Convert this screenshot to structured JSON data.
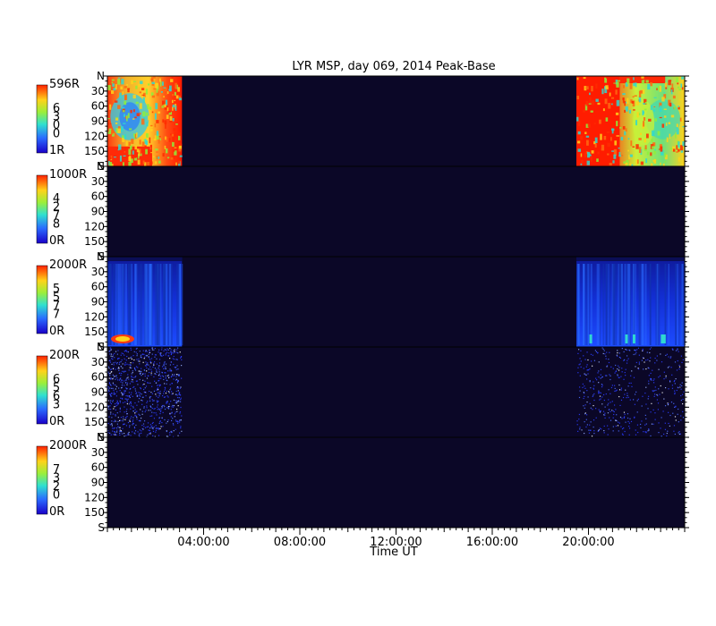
{
  "chart_data": {
    "type": "heatmap",
    "title": "LYR MSP, day 069, 2014 Peak-Base",
    "xlabel": "Time UT",
    "x_ticks": [
      "04:00:00",
      "08:00:00",
      "12:00:00",
      "16:00:00",
      "20:00:00"
    ],
    "xlim_hours": [
      0,
      24
    ],
    "x_tick_hours": [
      4,
      8,
      12,
      16,
      20
    ],
    "y_ticks": [
      "N",
      "30",
      "60",
      "90",
      "120",
      "150",
      "S"
    ],
    "ylim_deg": [
      0,
      180
    ],
    "y_tick_deg": [
      0,
      30,
      60,
      90,
      120,
      150,
      180
    ],
    "data_windows_hours": [
      [
        0,
        3.1
      ],
      [
        19.5,
        24
      ]
    ],
    "background_color": "#0b0727",
    "panels": [
      {
        "colorbar_max": "596R",
        "colorbar_min": "1R",
        "colorbar_digits": [
          "6",
          "3",
          "0",
          "0"
        ],
        "colormap": "rainbow",
        "fill": "saturated"
      },
      {
        "colorbar_max": "1000R",
        "colorbar_min": "0R",
        "colorbar_digits": [
          "4",
          "2",
          "7",
          "8"
        ],
        "colormap": "rainbow",
        "fill": "empty"
      },
      {
        "colorbar_max": "2000R",
        "colorbar_min": "0R",
        "colorbar_digits": [
          "5",
          "5",
          "7",
          "7"
        ],
        "colormap": "rainbow",
        "fill": "faint"
      },
      {
        "colorbar_max": "200R",
        "colorbar_min": "0R",
        "colorbar_digits": [
          "6",
          "5",
          "6",
          "3"
        ],
        "colormap": "rainbow",
        "fill": "speckle"
      },
      {
        "colorbar_max": "2000R",
        "colorbar_min": "0R",
        "colorbar_digits": [
          "7",
          "3",
          "2",
          "0"
        ],
        "colormap": "rainbow",
        "fill": "empty"
      }
    ]
  }
}
